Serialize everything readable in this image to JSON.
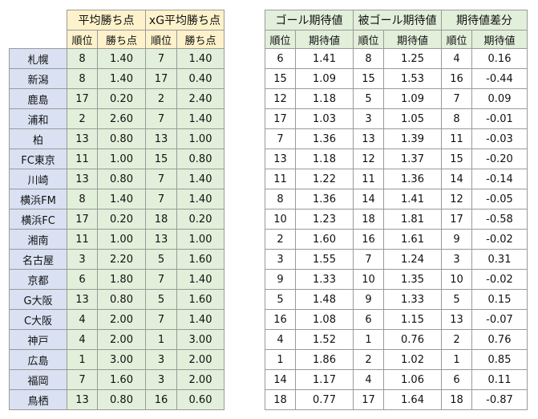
{
  "left_headers": {
    "group1": "平均勝ち点",
    "group2": "xG平均勝ち点",
    "rank": "順位",
    "points": "勝ち点"
  },
  "right_headers": {
    "group1": "ゴール期待値",
    "group2": "被ゴール期待値",
    "group3": "期待値差分",
    "rank": "順位",
    "value": "期待値"
  },
  "rows": [
    {
      "team": "札幌",
      "avg_rank": "8",
      "avg_pts": "1.40",
      "xg_rank": "7",
      "xg_pts": "1.40",
      "g_rank": "6",
      "g_val": "1.41",
      "ga_rank": "8",
      "ga_val": "1.25",
      "d_rank": "4",
      "d_val": "0.16"
    },
    {
      "team": "新潟",
      "avg_rank": "8",
      "avg_pts": "1.40",
      "xg_rank": "17",
      "xg_pts": "0.40",
      "g_rank": "15",
      "g_val": "1.09",
      "ga_rank": "15",
      "ga_val": "1.53",
      "d_rank": "16",
      "d_val": "-0.44"
    },
    {
      "team": "鹿島",
      "avg_rank": "17",
      "avg_pts": "0.20",
      "xg_rank": "2",
      "xg_pts": "2.40",
      "g_rank": "12",
      "g_val": "1.18",
      "ga_rank": "5",
      "ga_val": "1.09",
      "d_rank": "7",
      "d_val": "0.09"
    },
    {
      "team": "浦和",
      "avg_rank": "2",
      "avg_pts": "2.60",
      "xg_rank": "7",
      "xg_pts": "1.40",
      "g_rank": "17",
      "g_val": "1.03",
      "ga_rank": "3",
      "ga_val": "1.05",
      "d_rank": "8",
      "d_val": "-0.01"
    },
    {
      "team": "柏",
      "avg_rank": "13",
      "avg_pts": "0.80",
      "xg_rank": "13",
      "xg_pts": "1.00",
      "g_rank": "7",
      "g_val": "1.36",
      "ga_rank": "13",
      "ga_val": "1.39",
      "d_rank": "11",
      "d_val": "-0.03"
    },
    {
      "team": "FC東京",
      "avg_rank": "11",
      "avg_pts": "1.00",
      "xg_rank": "15",
      "xg_pts": "0.80",
      "g_rank": "13",
      "g_val": "1.18",
      "ga_rank": "12",
      "ga_val": "1.37",
      "d_rank": "15",
      "d_val": "-0.20"
    },
    {
      "team": "川崎",
      "avg_rank": "13",
      "avg_pts": "0.80",
      "xg_rank": "7",
      "xg_pts": "1.40",
      "g_rank": "11",
      "g_val": "1.22",
      "ga_rank": "11",
      "ga_val": "1.36",
      "d_rank": "14",
      "d_val": "-0.14"
    },
    {
      "team": "横浜FM",
      "avg_rank": "8",
      "avg_pts": "1.40",
      "xg_rank": "7",
      "xg_pts": "1.40",
      "g_rank": "8",
      "g_val": "1.36",
      "ga_rank": "14",
      "ga_val": "1.41",
      "d_rank": "12",
      "d_val": "-0.05"
    },
    {
      "team": "横浜FC",
      "avg_rank": "17",
      "avg_pts": "0.20",
      "xg_rank": "18",
      "xg_pts": "0.20",
      "g_rank": "10",
      "g_val": "1.23",
      "ga_rank": "18",
      "ga_val": "1.81",
      "d_rank": "17",
      "d_val": "-0.58"
    },
    {
      "team": "湘南",
      "avg_rank": "11",
      "avg_pts": "1.00",
      "xg_rank": "13",
      "xg_pts": "1.00",
      "g_rank": "2",
      "g_val": "1.60",
      "ga_rank": "16",
      "ga_val": "1.61",
      "d_rank": "9",
      "d_val": "-0.02"
    },
    {
      "team": "名古屋",
      "avg_rank": "3",
      "avg_pts": "2.20",
      "xg_rank": "5",
      "xg_pts": "1.60",
      "g_rank": "3",
      "g_val": "1.55",
      "ga_rank": "7",
      "ga_val": "1.24",
      "d_rank": "3",
      "d_val": "0.31"
    },
    {
      "team": "京都",
      "avg_rank": "6",
      "avg_pts": "1.80",
      "xg_rank": "7",
      "xg_pts": "1.40",
      "g_rank": "9",
      "g_val": "1.33",
      "ga_rank": "10",
      "ga_val": "1.35",
      "d_rank": "10",
      "d_val": "-0.02"
    },
    {
      "team": "G大阪",
      "avg_rank": "13",
      "avg_pts": "0.80",
      "xg_rank": "5",
      "xg_pts": "1.60",
      "g_rank": "5",
      "g_val": "1.48",
      "ga_rank": "9",
      "ga_val": "1.33",
      "d_rank": "5",
      "d_val": "0.15"
    },
    {
      "team": "C大阪",
      "avg_rank": "4",
      "avg_pts": "2.00",
      "xg_rank": "7",
      "xg_pts": "1.40",
      "g_rank": "16",
      "g_val": "1.08",
      "ga_rank": "6",
      "ga_val": "1.15",
      "d_rank": "13",
      "d_val": "-0.07"
    },
    {
      "team": "神戸",
      "avg_rank": "4",
      "avg_pts": "2.00",
      "xg_rank": "1",
      "xg_pts": "3.00",
      "g_rank": "4",
      "g_val": "1.52",
      "ga_rank": "1",
      "ga_val": "0.76",
      "d_rank": "2",
      "d_val": "0.76"
    },
    {
      "team": "広島",
      "avg_rank": "1",
      "avg_pts": "3.00",
      "xg_rank": "3",
      "xg_pts": "2.00",
      "g_rank": "1",
      "g_val": "1.86",
      "ga_rank": "2",
      "ga_val": "1.02",
      "d_rank": "1",
      "d_val": "0.85"
    },
    {
      "team": "福岡",
      "avg_rank": "7",
      "avg_pts": "1.60",
      "xg_rank": "3",
      "xg_pts": "2.00",
      "g_rank": "14",
      "g_val": "1.17",
      "ga_rank": "4",
      "ga_val": "1.06",
      "d_rank": "6",
      "d_val": "0.11"
    },
    {
      "team": "鳥栖",
      "avg_rank": "13",
      "avg_pts": "0.80",
      "xg_rank": "16",
      "xg_pts": "0.60",
      "g_rank": "18",
      "g_val": "0.77",
      "ga_rank": "17",
      "ga_val": "1.64",
      "d_rank": "18",
      "d_val": "-0.87"
    }
  ],
  "colors": {
    "green": "#e2efda",
    "yellow": "#fdf2cb",
    "team_blue": "#d9e1f2",
    "border": "#9a9a9a"
  }
}
